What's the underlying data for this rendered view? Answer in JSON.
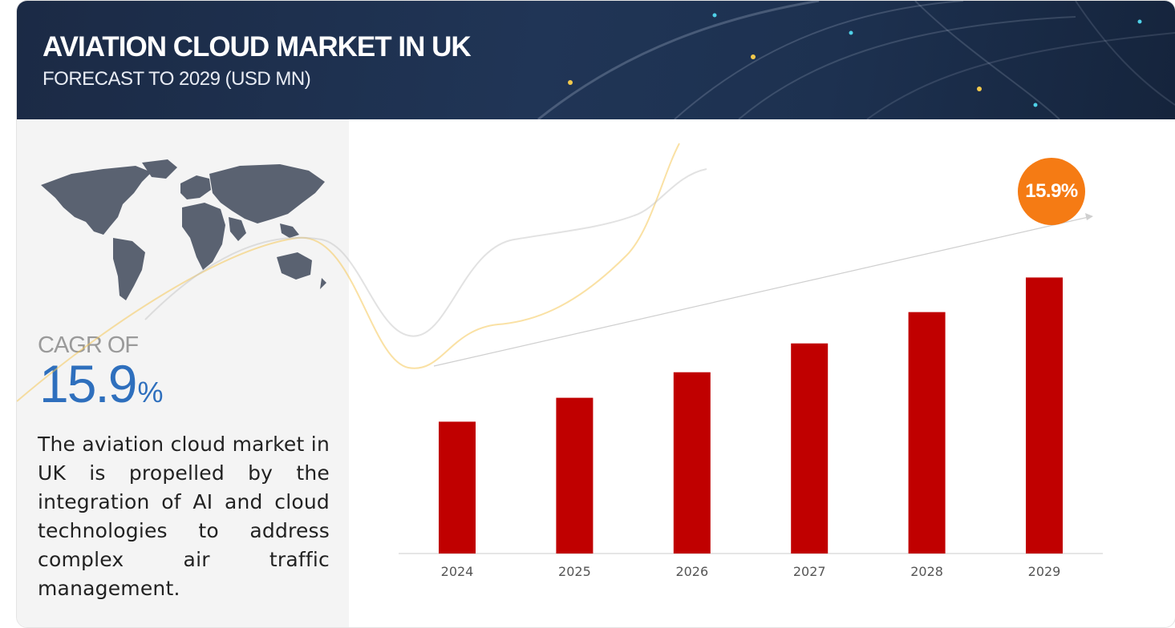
{
  "header": {
    "title": "AVIATION CLOUD MARKET IN UK",
    "subtitle": "FORECAST TO 2029 (USD MN)"
  },
  "left_panel": {
    "cagr_label": "CAGR OF",
    "cagr_number": "15.9",
    "cagr_unit": "%",
    "description": "The aviation cloud market in UK is propelled by the integration of AI and cloud technologies to address complex air traffic management."
  },
  "badge": {
    "text": "15.9%"
  },
  "colors": {
    "bar": "#c00000",
    "badge": "#f57b14",
    "cagr": "#2e6fbd",
    "header_bg": "#1d3150"
  },
  "icons": [
    "world-map-icon",
    "trend-arrow-icon"
  ],
  "chart_data": {
    "type": "bar",
    "title": "AVIATION CLOUD MARKET IN UK",
    "subtitle": "FORECAST TO 2029 (USD MN)",
    "categories": [
      "2024",
      "2025",
      "2026",
      "2027",
      "2028",
      "2029"
    ],
    "values": [
      160,
      189,
      220,
      255,
      293,
      335
    ],
    "ylim": [
      0,
      420
    ],
    "xlabel": "",
    "ylabel": "",
    "grid": false,
    "legend": "none",
    "annotation": "15.9%"
  }
}
